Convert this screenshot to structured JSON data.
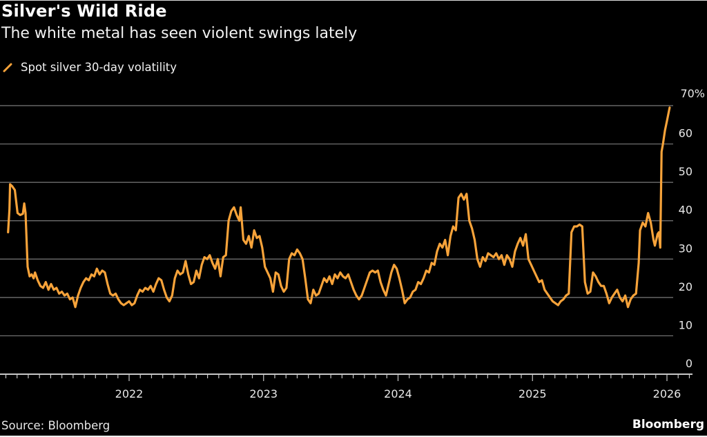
{
  "header": {
    "title": "Silver's Wild Ride",
    "subtitle": "The white metal has seen violent swings lately"
  },
  "footer": {
    "source": "Source: Bloomberg",
    "brand": "Bloomberg"
  },
  "colors": {
    "background": "#000000",
    "series": "#f7a33a",
    "grid": "#7a7a7a",
    "axis": "#c8c8c8",
    "text": "#ffffff"
  },
  "chart_data": {
    "type": "line",
    "title": "Silver's Wild Ride",
    "subtitle": "The white metal has seen violent swings lately",
    "xlabel": "",
    "ylabel": "",
    "ylim": [
      0,
      70
    ],
    "xlim": [
      2021.0,
      2026.25
    ],
    "grid": true,
    "legend_position": "top-left",
    "y_ticks": [
      {
        "value": 0,
        "label": "0"
      },
      {
        "value": 10,
        "label": "10"
      },
      {
        "value": 20,
        "label": "20"
      },
      {
        "value": 30,
        "label": "30"
      },
      {
        "value": 40,
        "label": "40"
      },
      {
        "value": 50,
        "label": "50"
      },
      {
        "value": 60,
        "label": "60"
      },
      {
        "value": 70,
        "label": "70%"
      }
    ],
    "x_ticks": [
      {
        "value": 2022,
        "label": "2022"
      },
      {
        "value": 2023,
        "label": "2023"
      },
      {
        "value": 2024,
        "label": "2024"
      },
      {
        "value": 2025,
        "label": "2025"
      },
      {
        "value": 2026,
        "label": "2026"
      }
    ],
    "series": [
      {
        "name": "Spot silver 30-day volatility",
        "points": [
          [
            2021.1,
            37.0
          ],
          [
            2021.11,
            43.0
          ],
          [
            2021.115,
            49.5
          ],
          [
            2021.13,
            49.0
          ],
          [
            2021.15,
            48.0
          ],
          [
            2021.17,
            42.0
          ],
          [
            2021.19,
            41.5
          ],
          [
            2021.21,
            41.8
          ],
          [
            2021.22,
            44.5
          ],
          [
            2021.23,
            42.0
          ],
          [
            2021.245,
            28.0
          ],
          [
            2021.26,
            25.5
          ],
          [
            2021.275,
            26.0
          ],
          [
            2021.29,
            25.0
          ],
          [
            2021.3,
            26.5
          ],
          [
            2021.32,
            24.5
          ],
          [
            2021.34,
            23.0
          ],
          [
            2021.36,
            22.5
          ],
          [
            2021.38,
            24.0
          ],
          [
            2021.4,
            22.0
          ],
          [
            2021.42,
            23.5
          ],
          [
            2021.44,
            22.0
          ],
          [
            2021.46,
            22.5
          ],
          [
            2021.48,
            21.0
          ],
          [
            2021.5,
            21.5
          ],
          [
            2021.52,
            20.5
          ],
          [
            2021.54,
            21.0
          ],
          [
            2021.56,
            19.5
          ],
          [
            2021.58,
            20.0
          ],
          [
            2021.6,
            17.5
          ],
          [
            2021.62,
            20.5
          ],
          [
            2021.64,
            22.5
          ],
          [
            2021.66,
            24.0
          ],
          [
            2021.68,
            25.0
          ],
          [
            2021.7,
            24.5
          ],
          [
            2021.72,
            26.0
          ],
          [
            2021.74,
            25.5
          ],
          [
            2021.76,
            27.5
          ],
          [
            2021.78,
            26.0
          ],
          [
            2021.8,
            27.0
          ],
          [
            2021.82,
            26.5
          ],
          [
            2021.84,
            23.5
          ],
          [
            2021.86,
            21.0
          ],
          [
            2021.88,
            20.5
          ],
          [
            2021.9,
            21.0
          ],
          [
            2021.92,
            19.5
          ],
          [
            2021.94,
            18.5
          ],
          [
            2021.96,
            18.0
          ],
          [
            2021.98,
            18.5
          ],
          [
            2022.0,
            19.0
          ],
          [
            2022.02,
            18.0
          ],
          [
            2022.04,
            18.5
          ],
          [
            2022.06,
            20.5
          ],
          [
            2022.08,
            22.0
          ],
          [
            2022.1,
            21.5
          ],
          [
            2022.12,
            22.5
          ],
          [
            2022.14,
            22.0
          ],
          [
            2022.16,
            23.0
          ],
          [
            2022.18,
            21.5
          ],
          [
            2022.2,
            23.5
          ],
          [
            2022.22,
            25.0
          ],
          [
            2022.24,
            24.5
          ],
          [
            2022.26,
            22.0
          ],
          [
            2022.28,
            20.0
          ],
          [
            2022.3,
            19.0
          ],
          [
            2022.32,
            20.5
          ],
          [
            2022.34,
            25.0
          ],
          [
            2022.36,
            27.0
          ],
          [
            2022.38,
            26.0
          ],
          [
            2022.4,
            26.5
          ],
          [
            2022.42,
            29.5
          ],
          [
            2022.44,
            26.0
          ],
          [
            2022.46,
            23.5
          ],
          [
            2022.48,
            24.0
          ],
          [
            2022.5,
            27.0
          ],
          [
            2022.52,
            25.0
          ],
          [
            2022.54,
            28.5
          ],
          [
            2022.56,
            30.5
          ],
          [
            2022.58,
            30.0
          ],
          [
            2022.6,
            31.0
          ],
          [
            2022.62,
            29.0
          ],
          [
            2022.64,
            27.5
          ],
          [
            2022.66,
            30.0
          ],
          [
            2022.68,
            25.5
          ],
          [
            2022.7,
            30.5
          ],
          [
            2022.72,
            31.0
          ],
          [
            2022.74,
            40.0
          ],
          [
            2022.76,
            42.5
          ],
          [
            2022.78,
            43.5
          ],
          [
            2022.8,
            41.5
          ],
          [
            2022.82,
            40.0
          ],
          [
            2022.83,
            43.5
          ],
          [
            2022.85,
            35.0
          ],
          [
            2022.87,
            34.0
          ],
          [
            2022.89,
            36.0
          ],
          [
            2022.91,
            33.0
          ],
          [
            2022.93,
            37.5
          ],
          [
            2022.95,
            35.5
          ],
          [
            2022.97,
            36.0
          ],
          [
            2022.99,
            33.0
          ],
          [
            2023.01,
            28.0
          ],
          [
            2023.03,
            26.5
          ],
          [
            2023.05,
            25.0
          ],
          [
            2023.07,
            21.5
          ],
          [
            2023.09,
            26.5
          ],
          [
            2023.11,
            26.0
          ],
          [
            2023.13,
            23.0
          ],
          [
            2023.15,
            21.5
          ],
          [
            2023.17,
            22.5
          ],
          [
            2023.19,
            30.0
          ],
          [
            2023.21,
            31.5
          ],
          [
            2023.23,
            31.0
          ],
          [
            2023.25,
            32.5
          ],
          [
            2023.27,
            31.5
          ],
          [
            2023.29,
            30.0
          ],
          [
            2023.31,
            25.0
          ],
          [
            2023.33,
            19.5
          ],
          [
            2023.35,
            18.5
          ],
          [
            2023.37,
            22.0
          ],
          [
            2023.39,
            20.5
          ],
          [
            2023.41,
            21.0
          ],
          [
            2023.43,
            23.0
          ],
          [
            2023.45,
            25.0
          ],
          [
            2023.47,
            24.0
          ],
          [
            2023.49,
            25.5
          ],
          [
            2023.51,
            23.5
          ],
          [
            2023.53,
            26.0
          ],
          [
            2023.55,
            25.0
          ],
          [
            2023.57,
            26.5
          ],
          [
            2023.59,
            25.5
          ],
          [
            2023.61,
            25.0
          ],
          [
            2023.63,
            26.0
          ],
          [
            2023.65,
            24.0
          ],
          [
            2023.67,
            22.0
          ],
          [
            2023.69,
            20.5
          ],
          [
            2023.71,
            19.5
          ],
          [
            2023.73,
            20.5
          ],
          [
            2023.75,
            22.5
          ],
          [
            2023.77,
            24.5
          ],
          [
            2023.79,
            26.5
          ],
          [
            2023.81,
            27.0
          ],
          [
            2023.83,
            26.5
          ],
          [
            2023.85,
            27.0
          ],
          [
            2023.87,
            24.0
          ],
          [
            2023.89,
            22.0
          ],
          [
            2023.91,
            20.5
          ],
          [
            2023.93,
            23.5
          ],
          [
            2023.95,
            26.5
          ],
          [
            2023.97,
            28.5
          ],
          [
            2023.99,
            27.5
          ],
          [
            2024.01,
            25.0
          ],
          [
            2024.03,
            22.0
          ],
          [
            2024.05,
            18.5
          ],
          [
            2024.07,
            19.5
          ],
          [
            2024.09,
            20.0
          ],
          [
            2024.11,
            21.5
          ],
          [
            2024.13,
            22.0
          ],
          [
            2024.15,
            24.0
          ],
          [
            2024.17,
            23.5
          ],
          [
            2024.19,
            25.0
          ],
          [
            2024.21,
            27.0
          ],
          [
            2024.23,
            26.5
          ],
          [
            2024.25,
            29.0
          ],
          [
            2024.27,
            28.5
          ],
          [
            2024.29,
            32.0
          ],
          [
            2024.31,
            34.0
          ],
          [
            2024.33,
            33.0
          ],
          [
            2024.35,
            35.0
          ],
          [
            2024.37,
            31.0
          ],
          [
            2024.39,
            36.0
          ],
          [
            2024.41,
            38.5
          ],
          [
            2024.43,
            37.5
          ],
          [
            2024.45,
            46.0
          ],
          [
            2024.47,
            47.0
          ],
          [
            2024.49,
            45.5
          ],
          [
            2024.51,
            47.0
          ],
          [
            2024.53,
            40.0
          ],
          [
            2024.55,
            38.0
          ],
          [
            2024.57,
            35.0
          ],
          [
            2024.59,
            30.0
          ],
          [
            2024.61,
            28.0
          ],
          [
            2024.63,
            30.5
          ],
          [
            2024.65,
            29.5
          ],
          [
            2024.67,
            31.5
          ],
          [
            2024.69,
            31.0
          ],
          [
            2024.71,
            30.5
          ],
          [
            2024.73,
            31.5
          ],
          [
            2024.75,
            30.0
          ],
          [
            2024.77,
            31.0
          ],
          [
            2024.79,
            28.5
          ],
          [
            2024.81,
            31.0
          ],
          [
            2024.83,
            30.0
          ],
          [
            2024.85,
            28.0
          ],
          [
            2024.87,
            32.0
          ],
          [
            2024.89,
            34.0
          ],
          [
            2024.91,
            35.5
          ],
          [
            2024.93,
            33.5
          ],
          [
            2024.95,
            36.5
          ],
          [
            2024.97,
            30.0
          ],
          [
            2024.99,
            28.5
          ],
          [
            2025.01,
            27.0
          ],
          [
            2025.03,
            25.5
          ],
          [
            2025.05,
            24.0
          ],
          [
            2025.07,
            24.5
          ],
          [
            2025.09,
            22.0
          ],
          [
            2025.11,
            21.0
          ],
          [
            2025.13,
            20.0
          ],
          [
            2025.15,
            19.0
          ],
          [
            2025.17,
            18.5
          ],
          [
            2025.19,
            18.0
          ],
          [
            2025.21,
            19.0
          ],
          [
            2025.23,
            19.5
          ],
          [
            2025.25,
            20.5
          ],
          [
            2025.27,
            21.0
          ],
          [
            2025.29,
            37.0
          ],
          [
            2025.31,
            38.5
          ],
          [
            2025.33,
            38.5
          ],
          [
            2025.35,
            39.0
          ],
          [
            2025.37,
            38.5
          ],
          [
            2025.39,
            24.0
          ],
          [
            2025.41,
            21.0
          ],
          [
            2025.43,
            21.5
          ],
          [
            2025.45,
            26.5
          ],
          [
            2025.47,
            25.5
          ],
          [
            2025.49,
            24.0
          ],
          [
            2025.51,
            23.0
          ],
          [
            2025.53,
            23.0
          ],
          [
            2025.55,
            21.0
          ],
          [
            2025.57,
            18.5
          ],
          [
            2025.59,
            20.0
          ],
          [
            2025.61,
            21.0
          ],
          [
            2025.63,
            22.0
          ],
          [
            2025.65,
            20.0
          ],
          [
            2025.67,
            19.0
          ],
          [
            2025.69,
            20.5
          ],
          [
            2025.71,
            17.5
          ],
          [
            2025.73,
            19.5
          ],
          [
            2025.75,
            20.5
          ],
          [
            2025.77,
            21.0
          ],
          [
            2025.79,
            29.0
          ],
          [
            2025.8,
            37.5
          ],
          [
            2025.82,
            39.5
          ],
          [
            2025.84,
            38.5
          ],
          [
            2025.86,
            42.0
          ],
          [
            2025.88,
            39.5
          ],
          [
            2025.9,
            35.0
          ],
          [
            2025.91,
            33.5
          ],
          [
            2025.93,
            36.5
          ],
          [
            2025.94,
            37.0
          ],
          [
            2025.95,
            33.0
          ],
          [
            2025.96,
            58.0
          ],
          [
            2025.97,
            60.0
          ],
          [
            2025.985,
            63.5
          ],
          [
            2026.0,
            66.0
          ],
          [
            2026.02,
            69.5
          ]
        ]
      }
    ]
  }
}
